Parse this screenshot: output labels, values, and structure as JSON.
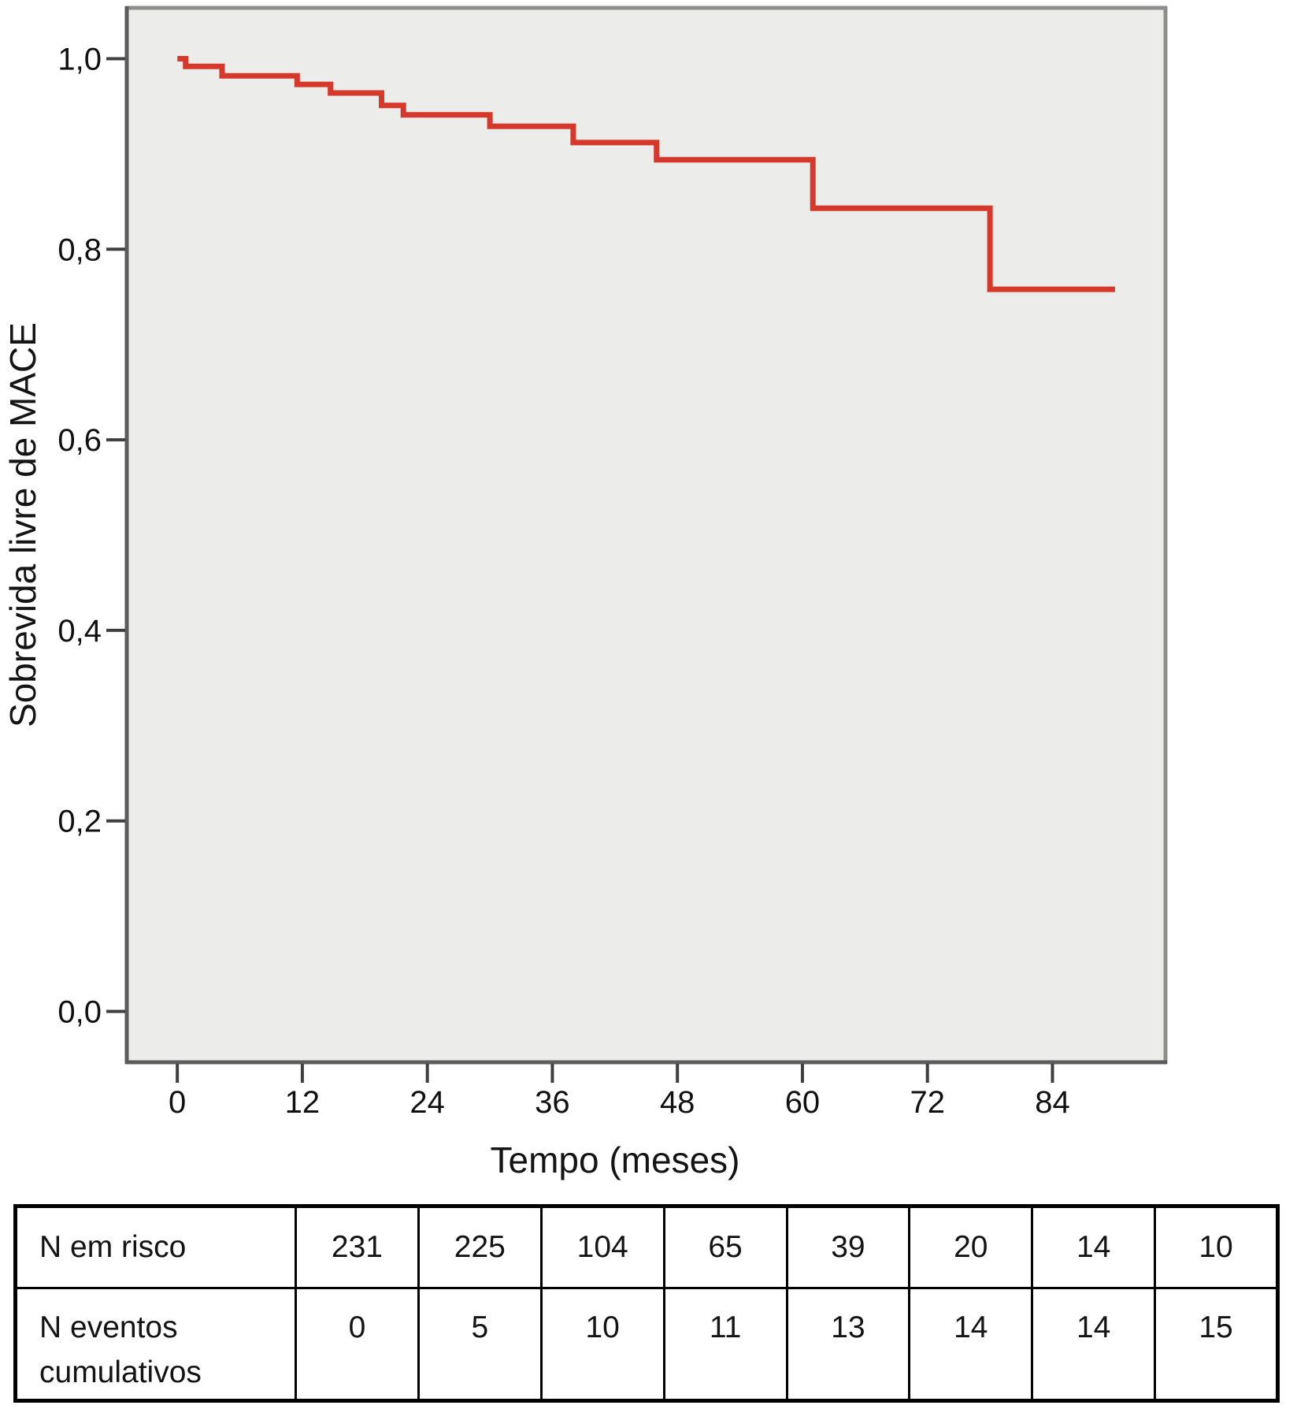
{
  "figure": {
    "y_axis_title": "Sobrevida livre de MACE",
    "x_axis_title": "Tempo (meses)"
  },
  "chart_data": {
    "type": "line",
    "subtype": "kaplan_meier_step",
    "title": "",
    "xlabel": "Tempo (meses)",
    "ylabel": "Sobrevida livre de MACE",
    "xlim": [
      -5,
      95
    ],
    "ylim": [
      -0.055,
      1.055
    ],
    "x_ticks": [
      0,
      12,
      24,
      36,
      48,
      60,
      72,
      84
    ],
    "x_tick_labels": [
      "0",
      "12",
      "24",
      "36",
      "48",
      "60",
      "72",
      "84"
    ],
    "y_ticks": [
      0,
      0.2,
      0.4,
      0.6,
      0.8,
      1.0
    ],
    "y_tick_labels": [
      "0,0",
      "0,2",
      "0,4",
      "0,6",
      "0,8",
      "1,0"
    ],
    "grid": false,
    "legend": "none",
    "plot_bg": "#ececea",
    "axis_color_dark": "#5c5c5c",
    "axis_color_light": "#8e8e8e",
    "tick_color": "#3f3f3f",
    "series": [
      {
        "name": "Sobrevida livre de MACE",
        "color": "#d6382c",
        "line_width": 7,
        "points": [
          [
            0,
            1.0
          ],
          [
            0.8,
            0.992
          ],
          [
            4.3,
            0.982
          ],
          [
            11.5,
            0.973
          ],
          [
            14.7,
            0.964
          ],
          [
            19.6,
            0.951
          ],
          [
            21.7,
            0.941
          ],
          [
            30,
            0.929
          ],
          [
            38,
            0.912
          ],
          [
            46,
            0.894
          ],
          [
            61,
            0.843
          ],
          [
            78,
            0.758
          ]
        ],
        "end_time": 90
      }
    ]
  },
  "risk_table": {
    "rows": [
      {
        "label": "N em risco",
        "label_lines": [
          "N em risco"
        ],
        "values": [
          "231",
          "225",
          "104",
          "65",
          "39",
          "20",
          "14",
          "10"
        ]
      },
      {
        "label": "N eventos cumulativos",
        "label_lines": [
          "N eventos",
          "cumulativos"
        ],
        "values": [
          "0",
          "5",
          "10",
          "11",
          "13",
          "14",
          "14",
          "15"
        ]
      }
    ]
  }
}
